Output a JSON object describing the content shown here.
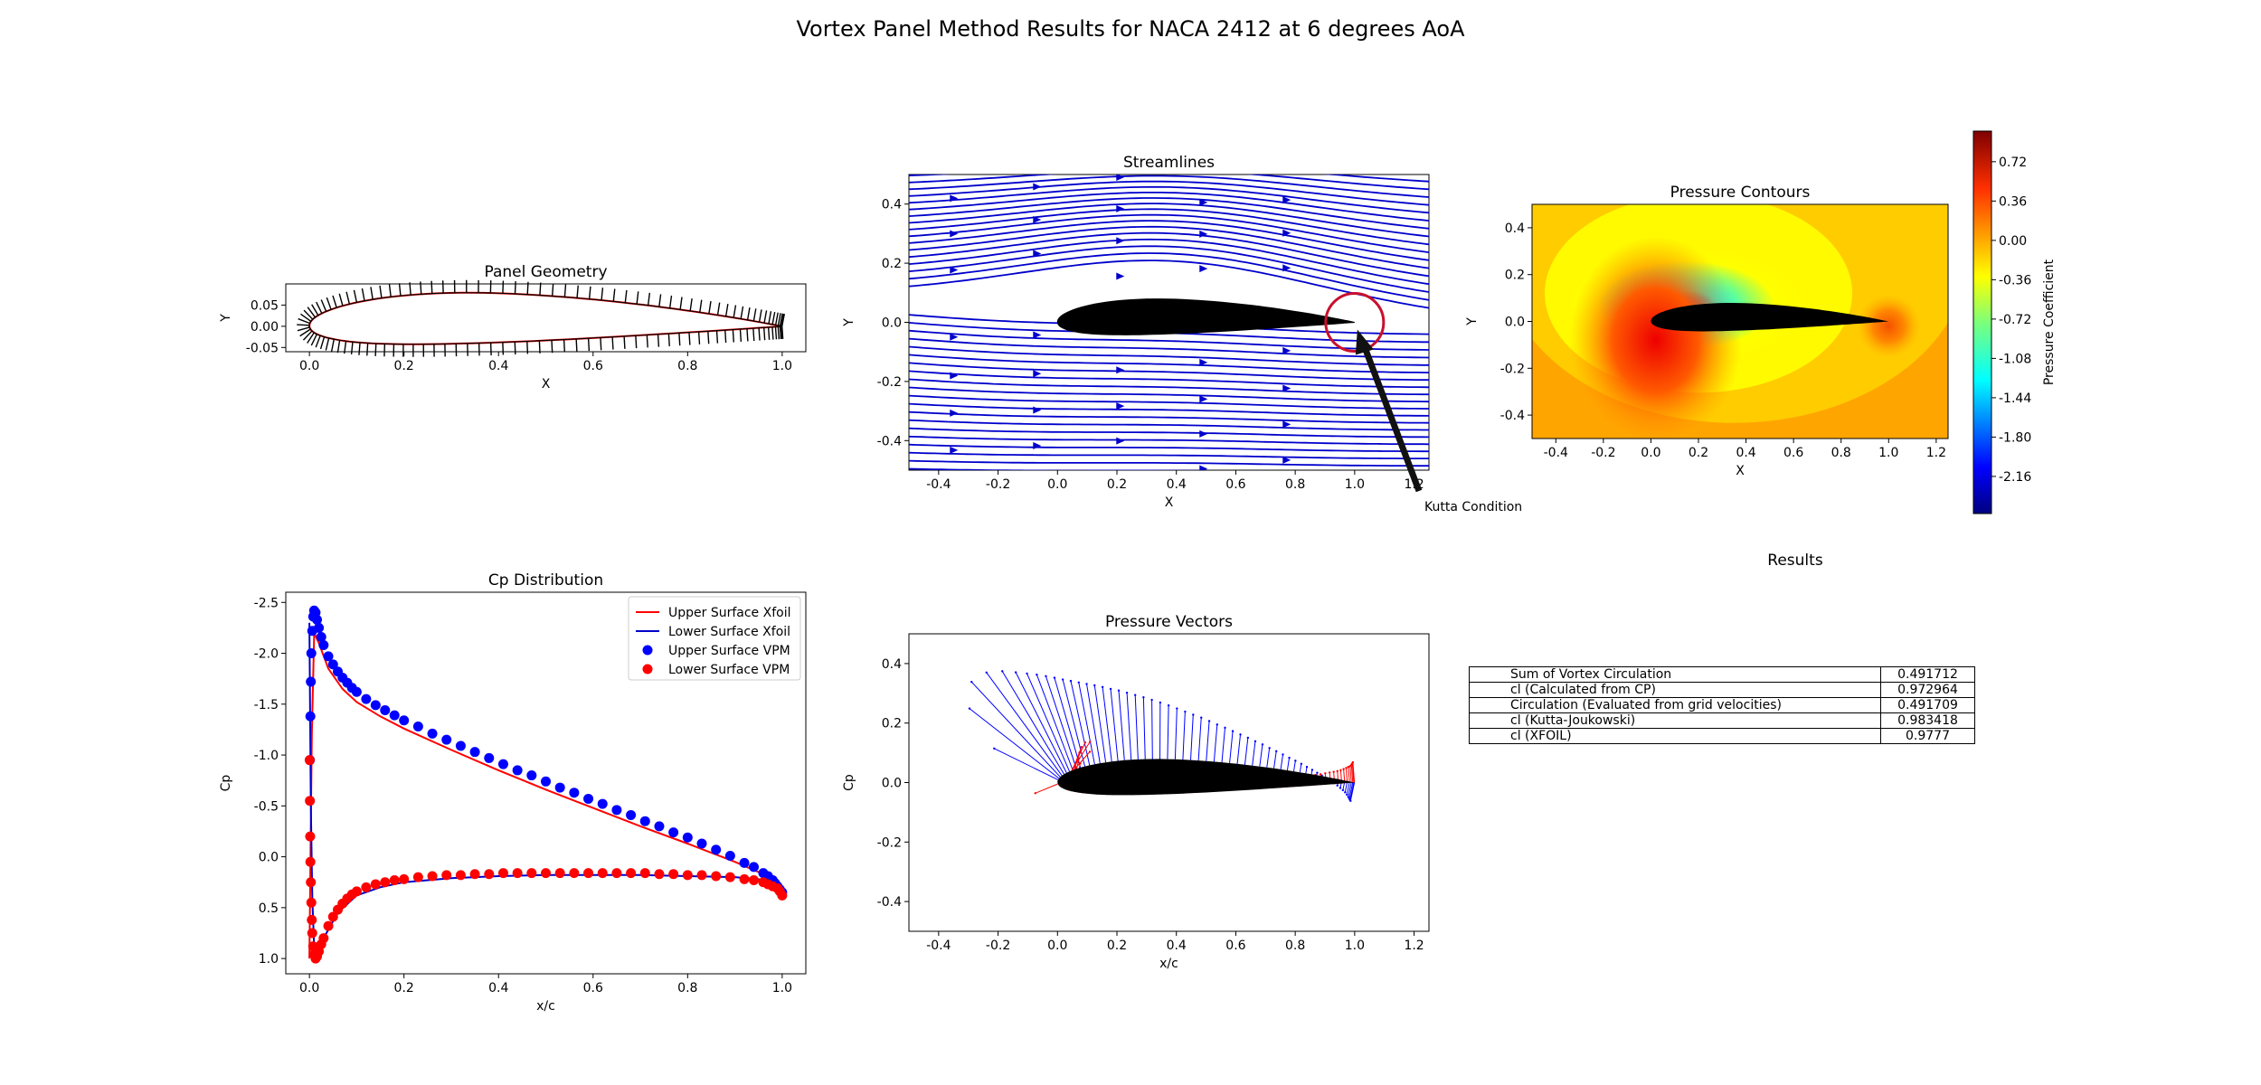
{
  "figure": {
    "title": "Vortex Panel Method Results for NACA 2412 at 6 degrees AoA"
  },
  "chart_data": [
    {
      "id": "panel_geometry",
      "type": "line",
      "title": "Panel Geometry",
      "xlabel": "X",
      "ylabel": "Y",
      "xlim": [
        -0.05,
        1.05
      ],
      "ylim": [
        -0.06,
        0.1
      ],
      "xticks": [
        "0.0",
        "0.2",
        "0.4",
        "0.6",
        "0.8",
        "1.0"
      ],
      "yticks": [
        "-0.05",
        "0.00",
        "0.05"
      ],
      "airfoil": {
        "max_camber": 0.02,
        "camber_pos": 0.4,
        "thickness": 0.12
      },
      "series": [
        {
          "name": "",
          "color": "#ff0000",
          "kind": "contour"
        },
        {
          "name": "",
          "color": "#000000",
          "kind": "panel-normals"
        }
      ]
    },
    {
      "id": "streamlines",
      "type": "streamplot",
      "title": "Streamlines",
      "xlabel": "X",
      "ylabel": "Y",
      "xlim": [
        -0.5,
        1.25
      ],
      "ylim": [
        -0.5,
        0.5
      ],
      "xticks": [
        "-0.4",
        "-0.2",
        "0.0",
        "0.2",
        "0.4",
        "0.6",
        "0.8",
        "1.0",
        "1.2"
      ],
      "yticks": [
        "-0.4",
        "-0.2",
        "0.0",
        "0.2",
        "0.4"
      ],
      "line_color": "#0000cc",
      "annotation": {
        "text": "Kutta Condition",
        "target": [
          1.0,
          -0.05
        ],
        "circle_center": [
          1.0,
          0.0
        ]
      }
    },
    {
      "id": "pressure_contours",
      "type": "heatmap",
      "title": "Pressure Contours",
      "xlabel": "X",
      "ylabel": "Y",
      "xlim": [
        -0.5,
        1.25
      ],
      "ylim": [
        -0.5,
        0.5
      ],
      "xticks": [
        "-0.4",
        "-0.2",
        "0.0",
        "0.2",
        "0.4",
        "0.6",
        "0.8",
        "1.0",
        "1.2"
      ],
      "yticks": [
        "-0.4",
        "-0.2",
        "0.0",
        "0.2",
        "0.4"
      ],
      "colorbar": {
        "label": "Pressure Coefficient",
        "range": [
          -2.5,
          1.0
        ],
        "ticks": [
          "0.72",
          "0.36",
          "0.00",
          "-0.36",
          "-0.72",
          "-1.08",
          "-1.44",
          "-1.80",
          "-2.16"
        ],
        "colormap": "jet"
      }
    },
    {
      "id": "cp_distribution",
      "type": "line",
      "title": "Cp Distribution",
      "xlabel": "x/c",
      "ylabel": "Cp",
      "xlim": [
        -0.05,
        1.05
      ],
      "ylim": [
        1.15,
        -2.6
      ],
      "y_inverted": true,
      "xticks": [
        "0.0",
        "0.2",
        "0.4",
        "0.6",
        "0.8",
        "1.0"
      ],
      "yticks": [
        "-2.5",
        "-2.0",
        "-1.5",
        "-1.0",
        "-0.5",
        "0.0",
        "0.5",
        "1.0"
      ],
      "legend": "top-right",
      "series": [
        {
          "name": "Upper Surface Xfoil",
          "color": "#ff0000",
          "marker": "line",
          "x": [
            0.0,
            0.002,
            0.005,
            0.01,
            0.02,
            0.04,
            0.07,
            0.1,
            0.15,
            0.2,
            0.3,
            0.4,
            0.5,
            0.6,
            0.7,
            0.8,
            0.9,
            0.95,
            0.99,
            1.0
          ],
          "y": [
            1.0,
            0.1,
            -1.2,
            -2.2,
            -2.1,
            -1.85,
            -1.65,
            -1.52,
            -1.38,
            -1.26,
            -1.05,
            -0.85,
            -0.66,
            -0.48,
            -0.3,
            -0.13,
            0.05,
            0.15,
            0.28,
            0.35
          ]
        },
        {
          "name": "Lower Surface Xfoil",
          "color": "#0000cc",
          "marker": "line",
          "x": [
            0.0,
            0.003,
            0.006,
            0.01,
            0.015,
            0.03,
            0.06,
            0.1,
            0.15,
            0.2,
            0.3,
            0.4,
            0.5,
            0.6,
            0.7,
            0.8,
            0.9,
            0.95,
            0.99,
            1.0
          ],
          "y": [
            -2.3,
            -0.5,
            0.4,
            0.9,
            0.95,
            0.8,
            0.55,
            0.38,
            0.3,
            0.25,
            0.21,
            0.19,
            0.18,
            0.18,
            0.18,
            0.19,
            0.2,
            0.22,
            0.3,
            0.35
          ]
        },
        {
          "name": "Upper Surface VPM",
          "color": "#0000ff",
          "marker": "circle",
          "x": [
            0.001,
            0.002,
            0.003,
            0.004,
            0.006,
            0.008,
            0.01,
            0.013,
            0.016,
            0.02,
            0.025,
            0.03,
            0.04,
            0.05,
            0.06,
            0.07,
            0.08,
            0.09,
            0.1,
            0.12,
            0.14,
            0.16,
            0.18,
            0.2,
            0.23,
            0.26,
            0.29,
            0.32,
            0.35,
            0.38,
            0.41,
            0.44,
            0.47,
            0.5,
            0.53,
            0.56,
            0.59,
            0.62,
            0.65,
            0.68,
            0.71,
            0.74,
            0.77,
            0.8,
            0.83,
            0.86,
            0.89,
            0.92,
            0.94,
            0.96,
            0.97,
            0.98,
            0.985,
            0.99,
            0.995,
            1.0
          ],
          "y": [
            -0.95,
            -1.38,
            -1.72,
            -2.0,
            -2.22,
            -2.36,
            -2.42,
            -2.4,
            -2.33,
            -2.25,
            -2.16,
            -2.08,
            -1.97,
            -1.89,
            -1.82,
            -1.76,
            -1.71,
            -1.66,
            -1.62,
            -1.55,
            -1.49,
            -1.44,
            -1.39,
            -1.34,
            -1.28,
            -1.21,
            -1.15,
            -1.09,
            -1.03,
            -0.97,
            -0.91,
            -0.85,
            -0.8,
            -0.74,
            -0.68,
            -0.63,
            -0.57,
            -0.52,
            -0.46,
            -0.41,
            -0.35,
            -0.3,
            -0.24,
            -0.19,
            -0.13,
            -0.07,
            -0.01,
            0.06,
            0.1,
            0.16,
            0.19,
            0.23,
            0.26,
            0.29,
            0.32,
            0.35
          ]
        },
        {
          "name": "Lower Surface VPM",
          "color": "#ff0000",
          "marker": "circle",
          "x": [
            0.0005,
            0.001,
            0.0015,
            0.002,
            0.003,
            0.004,
            0.005,
            0.006,
            0.008,
            0.01,
            0.013,
            0.016,
            0.02,
            0.025,
            0.03,
            0.04,
            0.05,
            0.06,
            0.07,
            0.08,
            0.09,
            0.1,
            0.12,
            0.14,
            0.16,
            0.18,
            0.2,
            0.23,
            0.26,
            0.29,
            0.32,
            0.35,
            0.38,
            0.41,
            0.44,
            0.47,
            0.5,
            0.53,
            0.56,
            0.59,
            0.62,
            0.65,
            0.68,
            0.71,
            0.74,
            0.77,
            0.8,
            0.83,
            0.86,
            0.89,
            0.92,
            0.94,
            0.96,
            0.97,
            0.98,
            0.99,
            0.995,
            1.0
          ],
          "y": [
            -0.95,
            -0.55,
            -0.2,
            0.05,
            0.25,
            0.45,
            0.62,
            0.75,
            0.88,
            0.96,
            1.0,
            0.98,
            0.93,
            0.86,
            0.8,
            0.68,
            0.59,
            0.52,
            0.46,
            0.41,
            0.37,
            0.34,
            0.3,
            0.27,
            0.25,
            0.23,
            0.22,
            0.2,
            0.19,
            0.18,
            0.18,
            0.17,
            0.17,
            0.16,
            0.16,
            0.16,
            0.16,
            0.16,
            0.16,
            0.16,
            0.16,
            0.16,
            0.16,
            0.16,
            0.17,
            0.17,
            0.18,
            0.18,
            0.19,
            0.2,
            0.22,
            0.23,
            0.25,
            0.27,
            0.29,
            0.31,
            0.34,
            0.38
          ]
        }
      ]
    },
    {
      "id": "pressure_vectors",
      "type": "quiver",
      "title": "Pressure Vectors",
      "xlabel": "x/c",
      "ylabel": "Cp",
      "xlim": [
        -0.5,
        1.25
      ],
      "ylim": [
        -0.5,
        0.5
      ],
      "xticks": [
        "-0.4",
        "-0.2",
        "0.0",
        "0.2",
        "0.4",
        "0.6",
        "0.8",
        "1.0",
        "1.2"
      ],
      "yticks": [
        "-0.4",
        "-0.2",
        "0.0",
        "0.2",
        "0.4"
      ],
      "upper_color": "#0000ff",
      "lower_color": "#ff0000"
    }
  ],
  "results": {
    "title": "Results",
    "rows": [
      {
        "label": "Sum of Vortex Circulation",
        "value": "0.491712"
      },
      {
        "label": "cl (Calculated from CP)",
        "value": "0.972964"
      },
      {
        "label": "Circulation (Evaluated from grid velocities)",
        "value": "0.491709"
      },
      {
        "label": "cl (Kutta-Joukowski)",
        "value": "0.983418"
      },
      {
        "label": "cl (XFOIL)",
        "value": "0.9777"
      }
    ]
  }
}
